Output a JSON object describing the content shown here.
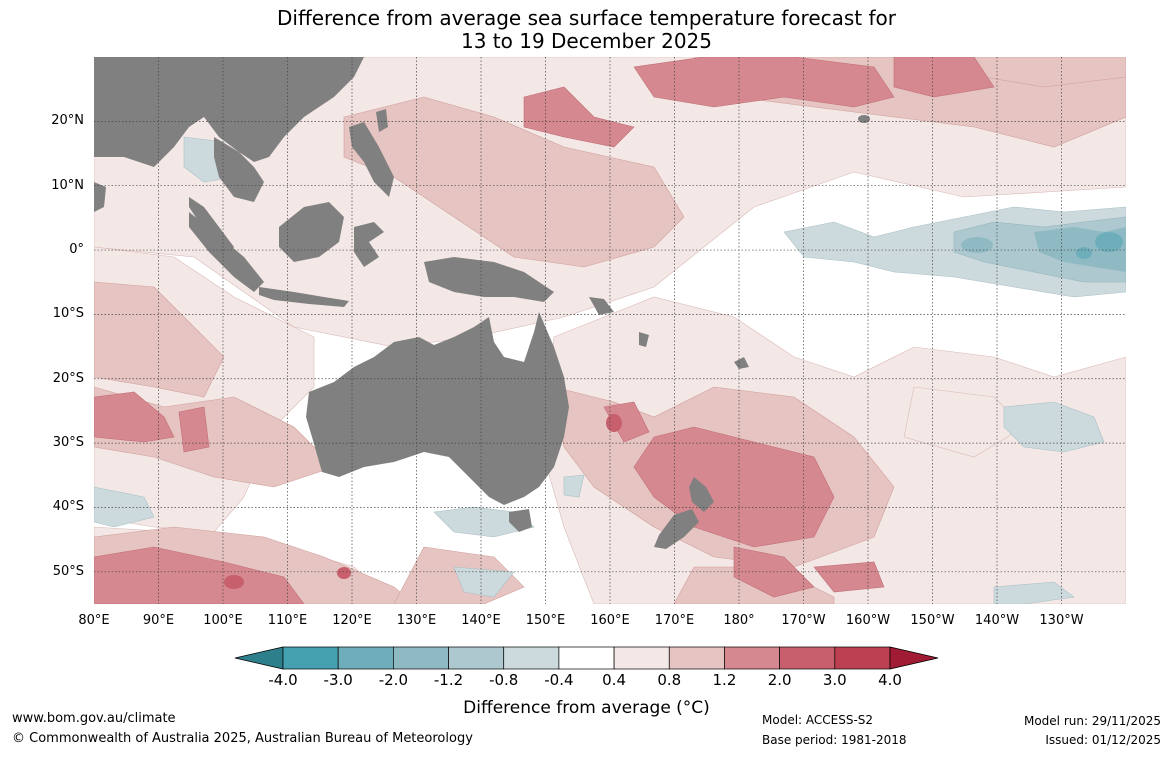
{
  "title": {
    "line1": "Difference from average sea surface temperature forecast for",
    "line2": "13 to 19 December 2025"
  },
  "axes": {
    "lat_labels": [
      "20°N",
      "10°N",
      "0°",
      "10°S",
      "20°S",
      "30°S",
      "40°S",
      "50°S"
    ],
    "lat_values": [
      20,
      10,
      0,
      -10,
      -20,
      -30,
      -40,
      -50
    ],
    "lon_labels": [
      "80°E",
      "90°E",
      "100°E",
      "110°E",
      "120°E",
      "130°E",
      "140°E",
      "150°E",
      "160°E",
      "170°E",
      "180°",
      "170°W",
      "160°W",
      "150°W",
      "140°W",
      "130°W"
    ],
    "lon_values": [
      80,
      90,
      100,
      110,
      120,
      130,
      140,
      150,
      160,
      170,
      180,
      190,
      200,
      210,
      220,
      230
    ],
    "lon_range": [
      80,
      240
    ],
    "lat_range": [
      -55,
      30
    ]
  },
  "colorbar": {
    "title": "Difference from average (°C)",
    "ticks": [
      "-4.0",
      "-3.0",
      "-2.0",
      "-1.2",
      "-0.8",
      "-0.4",
      "0.4",
      "0.8",
      "1.2",
      "2.0",
      "3.0",
      "4.0"
    ],
    "colors": [
      "#2e7f8c",
      "#45a1b0",
      "#6eaebb",
      "#8fbac4",
      "#adc9cf",
      "#ccdadd",
      "#ffffff",
      "#f4e8e7",
      "#e6c4c1",
      "#d5888f",
      "#c75f6c",
      "#bd4050",
      "#a01b33"
    ],
    "land_color": "#808080"
  },
  "footer": {
    "website": "www.bom.gov.au/climate",
    "copyright": "© Commonwealth of Australia 2025, Australian Bureau of Meteorology",
    "model": "Model: ACCESS-S2",
    "base_period": "Base period: 1981-2018",
    "model_run": "Model run: 29/11/2025",
    "issued": "Issued: 01/12/2025"
  }
}
